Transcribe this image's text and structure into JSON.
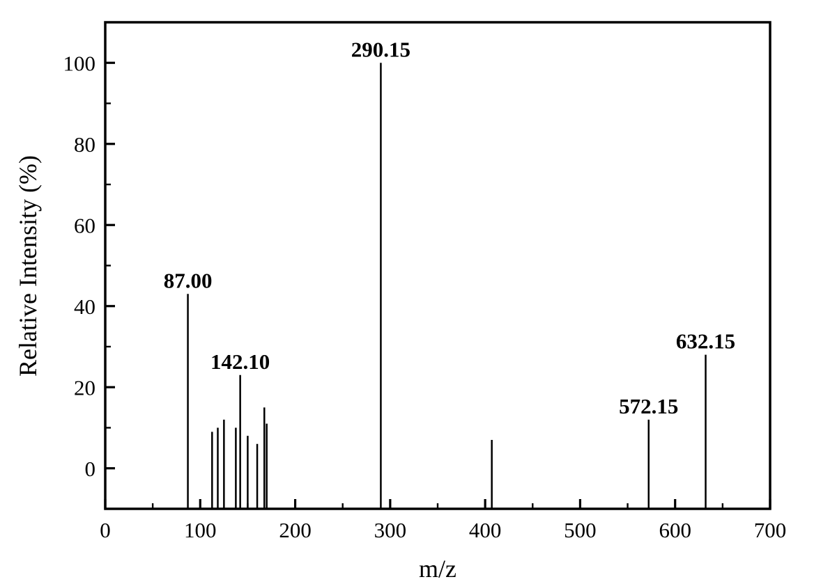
{
  "figure": {
    "background": "#ffffff",
    "line_color": "#000000",
    "text_color": "#000000"
  },
  "chart_data": {
    "type": "bar",
    "subtype": "mass-spectrum-stem",
    "title": "",
    "xlabel": "m/z",
    "ylabel": "Relative Intensity (%)",
    "xlim": [
      0,
      700
    ],
    "ylim": [
      -10,
      110
    ],
    "x_major_ticks": [
      0,
      100,
      200,
      300,
      400,
      500,
      600,
      700
    ],
    "x_minor_ticks": [
      50,
      150,
      250,
      350,
      450,
      550,
      650
    ],
    "y_major_ticks": [
      0,
      20,
      40,
      60,
      80,
      100
    ],
    "y_minor_ticks": [
      10,
      30,
      50,
      70,
      90
    ],
    "grid": false,
    "legend": null,
    "bar_baseline": -10,
    "peaks": [
      {
        "mz": 87.0,
        "intensity": 43,
        "label": "87.00"
      },
      {
        "mz": 112.5,
        "intensity": 9,
        "label": ""
      },
      {
        "mz": 118.5,
        "intensity": 10,
        "label": ""
      },
      {
        "mz": 125.0,
        "intensity": 12,
        "label": ""
      },
      {
        "mz": 137.5,
        "intensity": 10,
        "label": ""
      },
      {
        "mz": 142.1,
        "intensity": 23,
        "label": "142.10"
      },
      {
        "mz": 150.0,
        "intensity": 8,
        "label": ""
      },
      {
        "mz": 160.0,
        "intensity": 6,
        "label": ""
      },
      {
        "mz": 167.5,
        "intensity": 15,
        "label": ""
      },
      {
        "mz": 170.0,
        "intensity": 11,
        "label": ""
      },
      {
        "mz": 290.15,
        "intensity": 100,
        "label": "290.15"
      },
      {
        "mz": 407.0,
        "intensity": 7,
        "label": ""
      },
      {
        "mz": 572.15,
        "intensity": 12,
        "label": "572.15"
      },
      {
        "mz": 632.15,
        "intensity": 28,
        "label": "632.15"
      }
    ]
  }
}
